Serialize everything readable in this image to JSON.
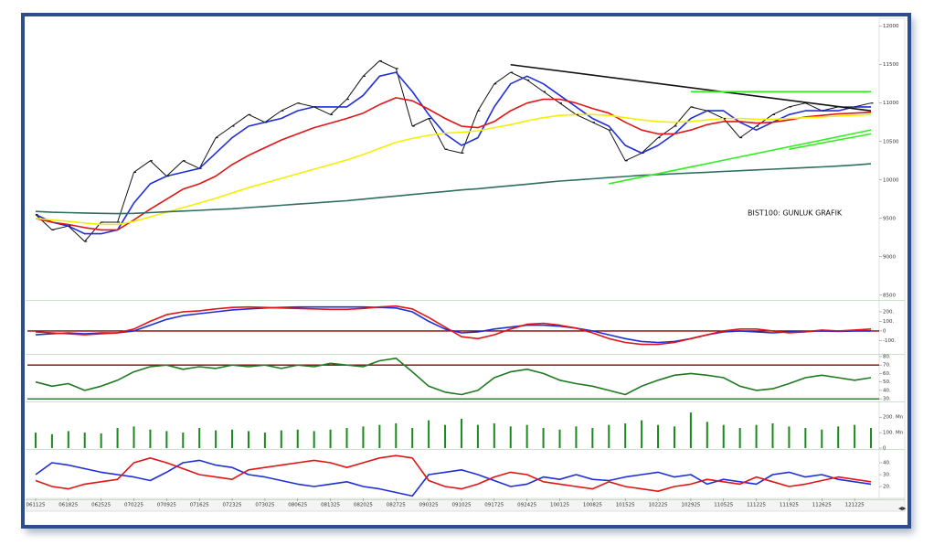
{
  "chart_data": [
    {
      "type": "line",
      "annotation": "BIST100: GUNLUK GRAFIK",
      "ylim": [
        8450,
        12080
      ],
      "yticks": [
        8500,
        9000,
        9500,
        10000,
        10500,
        11000,
        11500,
        12000
      ],
      "series": [
        {
          "color": "#111111",
          "values": [
            9550,
            9350,
            9400,
            9200,
            9450,
            9450,
            10100,
            10250,
            10050,
            10250,
            10150,
            10550,
            10700,
            10850,
            10750,
            10900,
            11000,
            10950,
            10850,
            11050,
            11350,
            11550,
            11450,
            10700,
            10800,
            10400,
            10350,
            10900,
            11250,
            11400,
            11300,
            11150,
            11000,
            10850,
            10750,
            10650,
            10250,
            10350,
            10550,
            10700,
            10950,
            10900,
            10800,
            10550,
            10700,
            10850,
            10950,
            11000,
            10900,
            10950,
            10950,
            11000
          ]
        },
        {
          "color": "#1f2fd8",
          "values": [
            9550,
            9450,
            9400,
            9300,
            9300,
            9350,
            9700,
            9950,
            10050,
            10100,
            10150,
            10350,
            10550,
            10700,
            10750,
            10800,
            10900,
            10950,
            10950,
            10950,
            11100,
            11350,
            11400,
            11150,
            10850,
            10600,
            10450,
            10550,
            10950,
            11250,
            11350,
            11250,
            11100,
            10950,
            10800,
            10700,
            10450,
            10350,
            10450,
            10600,
            10800,
            10900,
            10900,
            10750,
            10650,
            10750,
            10850,
            10900,
            10900,
            10900,
            10950,
            10950
          ]
        },
        {
          "color": "#e01515",
          "values": [
            9500,
            9450,
            9420,
            9380,
            9350,
            9350,
            9480,
            9620,
            9750,
            9880,
            9950,
            10050,
            10200,
            10320,
            10420,
            10520,
            10600,
            10680,
            10740,
            10800,
            10870,
            10980,
            11070,
            11030,
            10920,
            10800,
            10700,
            10680,
            10760,
            10900,
            11000,
            11050,
            11050,
            11000,
            10930,
            10870,
            10750,
            10650,
            10600,
            10600,
            10650,
            10720,
            10760,
            10760,
            10740,
            10750,
            10780,
            10820,
            10840,
            10860,
            10870,
            10880
          ]
        },
        {
          "color": "#f2f000",
          "values": [
            9500,
            9480,
            9460,
            9440,
            9420,
            9420,
            9460,
            9520,
            9580,
            9640,
            9700,
            9760,
            9830,
            9900,
            9960,
            10020,
            10080,
            10140,
            10200,
            10260,
            10330,
            10410,
            10490,
            10540,
            10580,
            10610,
            10620,
            10640,
            10680,
            10720,
            10770,
            10810,
            10840,
            10850,
            10850,
            10840,
            10810,
            10780,
            10760,
            10750,
            10760,
            10780,
            10800,
            10800,
            10790,
            10790,
            10800,
            10810,
            10820,
            10830,
            10840,
            10850
          ]
        },
        {
          "color": "#2f6f5f",
          "values": [
            9590,
            9580,
            9575,
            9570,
            9565,
            9562,
            9565,
            9575,
            9585,
            9595,
            9605,
            9615,
            9625,
            9640,
            9655,
            9670,
            9685,
            9700,
            9715,
            9730,
            9750,
            9770,
            9790,
            9810,
            9830,
            9850,
            9870,
            9885,
            9905,
            9925,
            9945,
            9965,
            9985,
            10000,
            10015,
            10030,
            10045,
            10060,
            10070,
            10080,
            10090,
            10100,
            10110,
            10120,
            10130,
            10140,
            10150,
            10160,
            10170,
            10180,
            10195,
            10210
          ]
        }
      ],
      "trendlines": [
        {
          "color": "#111111",
          "x": [
            29,
            51
          ],
          "y": [
            11500,
            10900
          ]
        },
        {
          "color": "#33ee22",
          "x": [
            35,
            51
          ],
          "y": [
            9950,
            10650
          ]
        },
        {
          "color": "#33ee22",
          "x": [
            40,
            51
          ],
          "y": [
            11150,
            11150
          ]
        },
        {
          "color": "#33ee22",
          "x": [
            46,
            51
          ],
          "y": [
            10400,
            10600
          ]
        }
      ]
    },
    {
      "type": "line",
      "ylim": [
        -230,
        295
      ],
      "yticks": [
        {
          "value": -100,
          "label": "-100."
        },
        0,
        {
          "value": 100,
          "label": "100."
        },
        {
          "value": 200,
          "label": "200."
        }
      ],
      "hlines": [
        {
          "value": 0,
          "color": "#8b0000"
        }
      ],
      "series": [
        {
          "color": "#1f2fd8",
          "values": [
            -40,
            -30,
            -20,
            -30,
            -20,
            -20,
            0,
            60,
            120,
            160,
            180,
            200,
            220,
            230,
            240,
            245,
            250,
            250,
            250,
            250,
            250,
            245,
            240,
            200,
            100,
            20,
            -20,
            -10,
            20,
            40,
            60,
            60,
            50,
            30,
            0,
            -40,
            -80,
            -110,
            -120,
            -110,
            -80,
            -40,
            -10,
            0,
            -10,
            -20,
            -10,
            -5,
            0,
            -5,
            0,
            0
          ]
        },
        {
          "color": "#e01515",
          "values": [
            -10,
            -20,
            -30,
            -40,
            -30,
            -20,
            20,
            100,
            170,
            200,
            210,
            230,
            245,
            250,
            245,
            240,
            235,
            230,
            225,
            225,
            235,
            250,
            260,
            230,
            140,
            40,
            -60,
            -80,
            -40,
            20,
            70,
            80,
            60,
            30,
            -20,
            -80,
            -120,
            -140,
            -140,
            -120,
            -80,
            -40,
            0,
            20,
            20,
            0,
            -20,
            -10,
            10,
            0,
            10,
            20
          ]
        }
      ]
    },
    {
      "type": "line",
      "ylim": [
        28,
        81
      ],
      "yticks": [
        {
          "value": 30,
          "label": "30."
        },
        {
          "value": 40,
          "label": "40."
        },
        {
          "value": 50,
          "label": "50."
        },
        {
          "value": 60,
          "label": "60."
        },
        {
          "value": 70,
          "label": "70."
        },
        {
          "value": 80,
          "label": "80."
        }
      ],
      "hlines": [
        {
          "value": 70,
          "color": "#8b0000"
        },
        {
          "value": 30,
          "color": "#1f7a1f"
        }
      ],
      "series": [
        {
          "color": "#1f7a1f",
          "values": [
            50,
            45,
            48,
            40,
            45,
            52,
            62,
            68,
            70,
            65,
            68,
            66,
            70,
            68,
            70,
            66,
            70,
            68,
            72,
            70,
            68,
            75,
            78,
            62,
            45,
            38,
            35,
            40,
            55,
            62,
            65,
            60,
            52,
            48,
            45,
            40,
            35,
            45,
            52,
            58,
            60,
            58,
            55,
            45,
            40,
            42,
            48,
            55,
            58,
            55,
            52,
            55
          ]
        }
      ]
    },
    {
      "type": "bar",
      "ylim": [
        0,
        290
      ],
      "yticks": [
        0,
        {
          "value": 100,
          "label": "100. Mn"
        },
        {
          "value": 200,
          "label": "200. Mn"
        }
      ],
      "series": [
        {
          "color": "#1a8a1a",
          "values": [
            100,
            90,
            110,
            100,
            95,
            130,
            140,
            120,
            110,
            100,
            130,
            115,
            120,
            110,
            100,
            115,
            120,
            110,
            120,
            130,
            140,
            150,
            160,
            130,
            180,
            150,
            190,
            150,
            160,
            140,
            150,
            130,
            120,
            140,
            130,
            150,
            160,
            180,
            150,
            140,
            230,
            170,
            150,
            130,
            150,
            160,
            140,
            130,
            120,
            140,
            150,
            130
          ]
        }
      ]
    },
    {
      "type": "line",
      "ylim": [
        10,
        50
      ],
      "yticks": [
        {
          "value": 20,
          "label": "20."
        },
        {
          "value": 30,
          "label": "30."
        },
        {
          "value": 40,
          "label": "40."
        }
      ],
      "categories": [
        "061125",
        null,
        "061825",
        null,
        "062525",
        null,
        "070225",
        null,
        "070925",
        null,
        "071625",
        null,
        "072325",
        null,
        "073025",
        null,
        "080625",
        null,
        "081325",
        null,
        "082025",
        null,
        "082725",
        null,
        "090325",
        null,
        "091025",
        null,
        "091725",
        null,
        "092425",
        null,
        "100125",
        null,
        "100825",
        null,
        "101525",
        null,
        "102225",
        null,
        "102925",
        null,
        "110525",
        null,
        "111225",
        null,
        "111925",
        null,
        "112625",
        null,
        "121225",
        null
      ],
      "series": [
        {
          "color": "#1f2fd8",
          "values": [
            30,
            40,
            38,
            35,
            32,
            30,
            28,
            25,
            32,
            40,
            42,
            38,
            36,
            30,
            28,
            25,
            22,
            20,
            22,
            24,
            20,
            18,
            15,
            12,
            30,
            32,
            34,
            30,
            25,
            20,
            22,
            28,
            26,
            30,
            26,
            25,
            28,
            30,
            32,
            28,
            30,
            22,
            26,
            24,
            22,
            30,
            32,
            28,
            30,
            26,
            24,
            22
          ]
        },
        {
          "color": "#e01515",
          "values": [
            25,
            20,
            18,
            22,
            24,
            26,
            40,
            44,
            40,
            35,
            30,
            28,
            26,
            34,
            36,
            38,
            40,
            42,
            40,
            36,
            40,
            44,
            46,
            44,
            25,
            20,
            18,
            22,
            28,
            32,
            30,
            24,
            22,
            20,
            18,
            24,
            20,
            18,
            16,
            20,
            22,
            26,
            24,
            22,
            28,
            24,
            20,
            22,
            25,
            28,
            26,
            24
          ]
        }
      ]
    }
  ]
}
